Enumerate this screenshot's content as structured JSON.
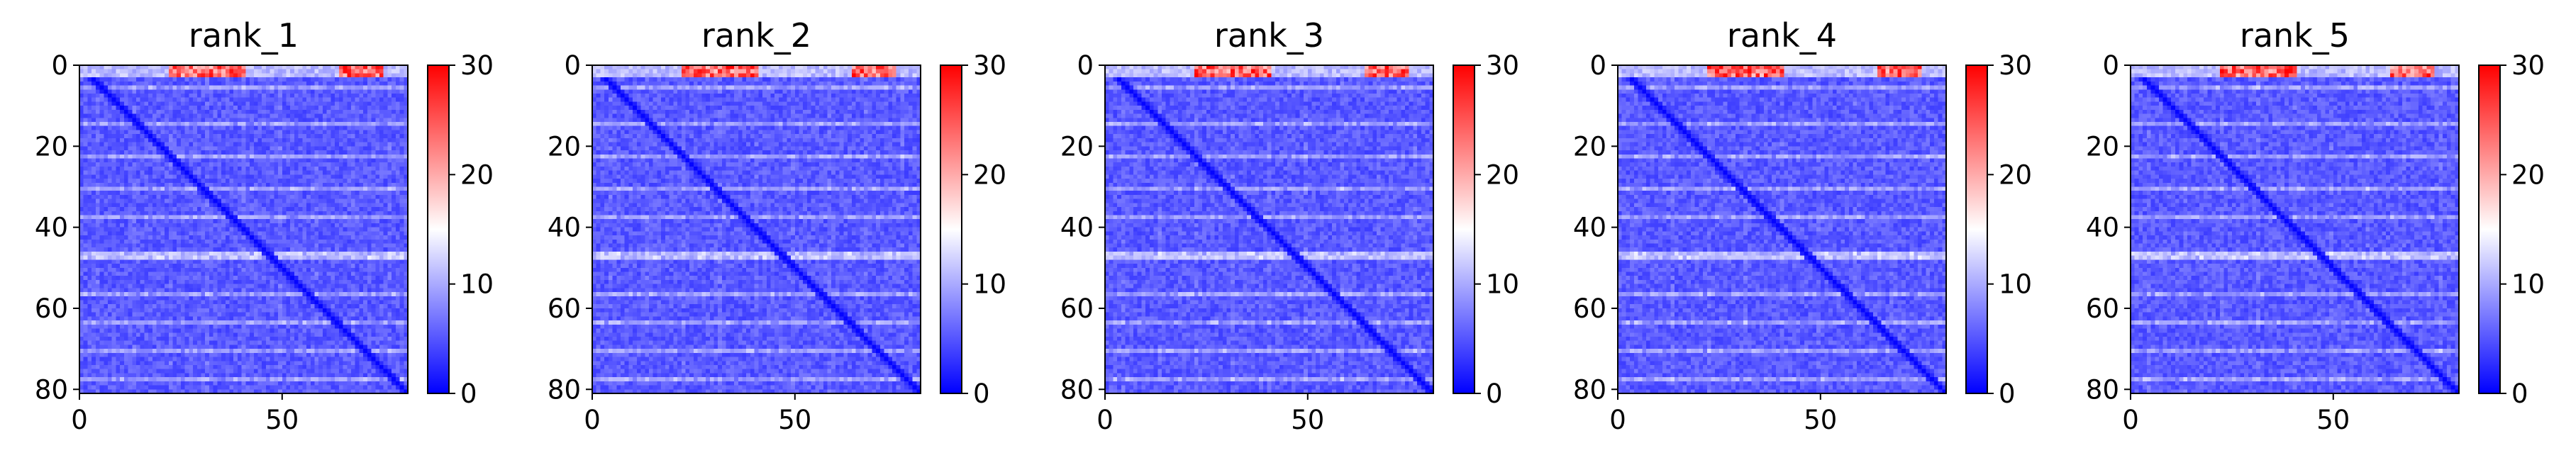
{
  "chart_data": [
    {
      "type": "heatmap",
      "title": "rank_1",
      "xlim": [
        0,
        81
      ],
      "ylim": [
        81,
        0
      ],
      "x_ticks": [
        "0",
        "50"
      ],
      "x_tick_values": [
        0,
        50
      ],
      "y_ticks": [
        "0",
        "20",
        "40",
        "60",
        "80"
      ],
      "y_tick_values": [
        0,
        20,
        40,
        60,
        80
      ],
      "colorbar": {
        "min": 0,
        "max": 30,
        "ticks": [
          "0",
          "10",
          "20",
          "30"
        ],
        "tick_values": [
          0,
          10,
          20,
          30
        ],
        "colormap": "bwr"
      },
      "grid": false
    },
    {
      "type": "heatmap",
      "title": "rank_2",
      "xlim": [
        0,
        81
      ],
      "ylim": [
        81,
        0
      ],
      "x_ticks": [
        "0",
        "50"
      ],
      "x_tick_values": [
        0,
        50
      ],
      "y_ticks": [
        "0",
        "20",
        "40",
        "60",
        "80"
      ],
      "y_tick_values": [
        0,
        20,
        40,
        60,
        80
      ],
      "colorbar": {
        "min": 0,
        "max": 30,
        "ticks": [
          "0",
          "10",
          "20",
          "30"
        ],
        "tick_values": [
          0,
          10,
          20,
          30
        ],
        "colormap": "bwr"
      },
      "grid": false
    },
    {
      "type": "heatmap",
      "title": "rank_3",
      "xlim": [
        0,
        81
      ],
      "ylim": [
        81,
        0
      ],
      "x_ticks": [
        "0",
        "50"
      ],
      "x_tick_values": [
        0,
        50
      ],
      "y_ticks": [
        "0",
        "20",
        "40",
        "60",
        "80"
      ],
      "y_tick_values": [
        0,
        20,
        40,
        60,
        80
      ],
      "colorbar": {
        "min": 0,
        "max": 30,
        "ticks": [
          "0",
          "10",
          "20",
          "30"
        ],
        "tick_values": [
          0,
          10,
          20,
          30
        ],
        "colormap": "bwr"
      },
      "grid": false
    },
    {
      "type": "heatmap",
      "title": "rank_4",
      "xlim": [
        0,
        81
      ],
      "ylim": [
        81,
        0
      ],
      "x_ticks": [
        "0",
        "50"
      ],
      "x_tick_values": [
        0,
        50
      ],
      "y_ticks": [
        "0",
        "20",
        "40",
        "60",
        "80"
      ],
      "y_tick_values": [
        0,
        20,
        40,
        60,
        80
      ],
      "colorbar": {
        "min": 0,
        "max": 30,
        "ticks": [
          "0",
          "10",
          "20",
          "30"
        ],
        "tick_values": [
          0,
          10,
          20,
          30
        ],
        "colormap": "bwr"
      },
      "grid": false
    },
    {
      "type": "heatmap",
      "title": "rank_5",
      "xlim": [
        0,
        81
      ],
      "ylim": [
        81,
        0
      ],
      "x_ticks": [
        "0",
        "50"
      ],
      "x_tick_values": [
        0,
        50
      ],
      "y_ticks": [
        "0",
        "20",
        "40",
        "60",
        "80"
      ],
      "y_tick_values": [
        0,
        20,
        40,
        60,
        80
      ],
      "colorbar": {
        "min": 0,
        "max": 30,
        "ticks": [
          "0",
          "10",
          "20",
          "30"
        ],
        "tick_values": [
          0,
          10,
          20,
          30
        ],
        "colormap": "bwr"
      },
      "grid": false
    }
  ],
  "colors": {
    "low": "#0000ff",
    "mid": "#ffffff",
    "high": "#ff0000"
  }
}
